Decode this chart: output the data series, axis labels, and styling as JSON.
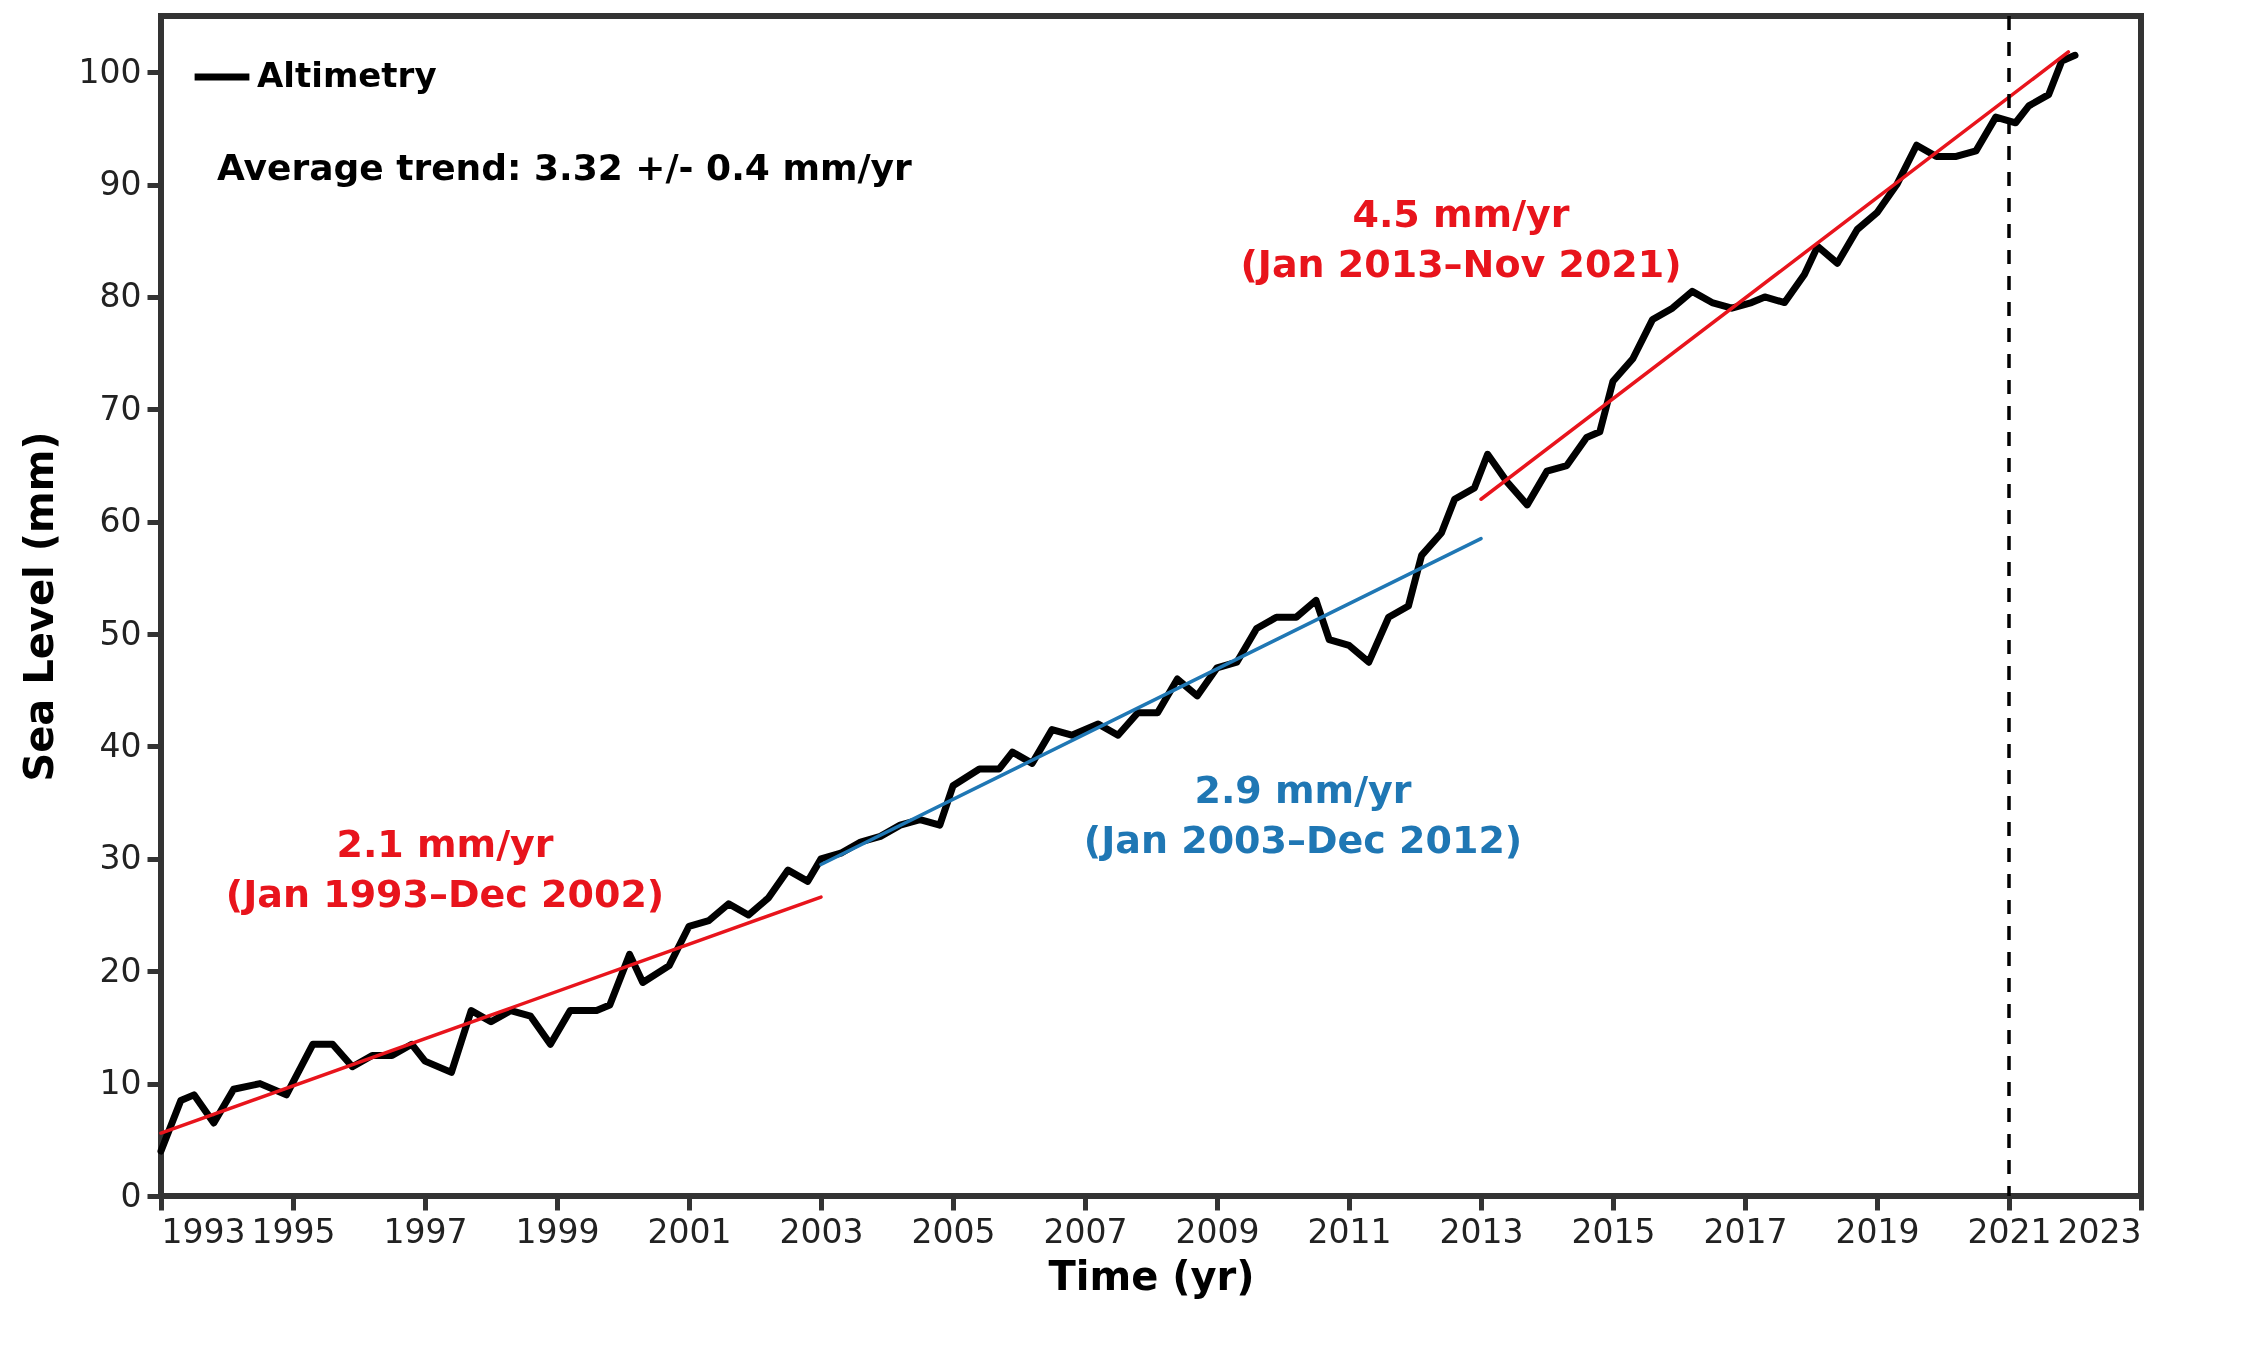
{
  "chart_data": {
    "type": "line",
    "xlabel": "Time (yr)",
    "ylabel": "Sea Level (mm)",
    "xlim": [
      1993,
      2023
    ],
    "xticks": [
      1993,
      1995,
      1997,
      1999,
      2001,
      2003,
      2005,
      2007,
      2009,
      2011,
      2013,
      2015,
      2017,
      2019,
      2021,
      2023
    ],
    "ylim": [
      0,
      105
    ],
    "yticks": [
      0,
      10,
      20,
      30,
      40,
      50,
      60,
      70,
      80,
      90,
      100
    ],
    "grid": false,
    "legend": "top left",
    "line_style": "solid",
    "marker": "none",
    "series": [
      {
        "name": "Altimetry",
        "color": "#000000",
        "x": [
          1993.0,
          1993.3,
          1993.5,
          1993.8,
          1994.1,
          1994.5,
          1994.9,
          1995.3,
          1995.6,
          1995.9,
          1996.2,
          1996.5,
          1996.8,
          1997.0,
          1997.4,
          1997.7,
          1998.0,
          1998.3,
          1998.6,
          1998.9,
          1999.2,
          1999.6,
          1999.8,
          2000.1,
          2000.3,
          2000.7,
          2001.0,
          2001.3,
          2001.6,
          2001.9,
          2002.2,
          2002.5,
          2002.8,
          2003.0,
          2003.3,
          2003.6,
          2003.9,
          2004.2,
          2004.5,
          2004.8,
          2005.0,
          2005.4,
          2005.7,
          2005.9,
          2006.2,
          2006.5,
          2006.8,
          2007.2,
          2007.5,
          2007.8,
          2008.1,
          2008.4,
          2008.7,
          2009.0,
          2009.3,
          2009.6,
          2009.9,
          2010.2,
          2010.5,
          2010.7,
          2011.0,
          2011.3,
          2011.6,
          2011.9,
          2012.1,
          2012.4,
          2012.6,
          2012.9,
          2013.1,
          2013.4,
          2013.7,
          2014.0,
          2014.3,
          2014.6,
          2014.8,
          2015.0,
          2015.3,
          2015.6,
          2015.9,
          2016.2,
          2016.5,
          2016.8,
          2017.1,
          2017.3,
          2017.6,
          2017.9,
          2018.1,
          2018.4,
          2018.7,
          2019.0,
          2019.3,
          2019.6,
          2019.9,
          2020.2,
          2020.5,
          2020.8,
          2021.1,
          2021.3,
          2021.6,
          2021.8,
          2022.0
        ],
        "values": [
          4,
          8.5,
          9,
          6.5,
          9.5,
          10,
          9,
          13.5,
          13.5,
          11.5,
          12.5,
          12.5,
          13.5,
          12,
          11,
          16.5,
          15.5,
          16.5,
          16,
          13.5,
          16.5,
          16.5,
          17,
          21.5,
          19,
          20.5,
          24,
          24.5,
          26,
          25,
          26.5,
          29,
          28,
          30,
          30.5,
          31.5,
          32,
          33,
          33.5,
          33,
          36.5,
          38,
          38,
          39.5,
          38.5,
          41.5,
          41,
          42,
          41,
          43,
          43,
          46,
          44.5,
          47,
          47.5,
          50.5,
          51.5,
          51.5,
          53,
          49.5,
          49,
          47.5,
          51.5,
          52.5,
          57,
          59,
          62,
          63,
          66,
          63.5,
          61.5,
          64.5,
          65,
          67.5,
          68,
          72.5,
          74.5,
          78,
          79,
          80.5,
          79.5,
          79,
          79.5,
          80,
          79.5,
          82,
          84.5,
          83,
          86,
          87.5,
          90,
          93.5,
          92.5,
          92.5,
          93,
          96,
          95.5,
          97,
          98,
          101,
          101.5
        ]
      },
      {
        "color": "#e8141c",
        "x": [
          1993.0,
          2003.0
        ],
        "values": [
          5.6,
          26.6
        ]
      },
      {
        "color": "#1f77b4",
        "x": [
          2003.0,
          2013.0
        ],
        "values": [
          29.5,
          58.5
        ]
      },
      {
        "color": "#e8141c",
        "x": [
          2013.0,
          2021.9
        ],
        "values": [
          62,
          101.8
        ]
      }
    ],
    "ref_lines": [
      {
        "axis": "x",
        "value": 2021,
        "color": "#000000",
        "line_style": "dashed"
      }
    ],
    "annotations": [
      "Average trend: 3.32 +/- 0.4 mm/yr",
      "2.1 mm/yr\n(Jan 1993–Dec 2002)",
      "2.9 mm/yr\n(Jan 2003–Dec 2012)",
      "4.5 mm/yr\n(Jan 2013–Nov 2021)"
    ]
  }
}
